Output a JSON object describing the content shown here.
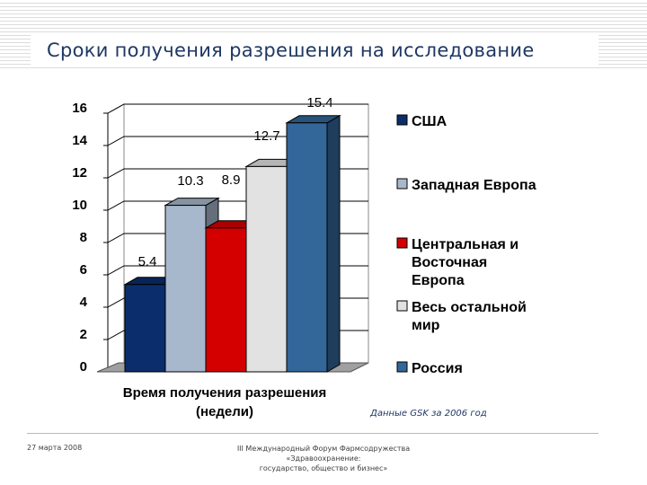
{
  "slide": {
    "title": "Сроки получения разрешения на исследование",
    "footer_date": "27 марта 2008",
    "footer_center": [
      "III Международный Форум Фармсодружества",
      "«Здравоохранение:",
      "государство, общество и бизнес»"
    ],
    "source_note": "Данные GSK за 2006 год"
  },
  "chart_data": {
    "type": "bar",
    "categories": [
      "Время получения разрешения (недели)"
    ],
    "xlabel_lines": [
      "Время получения разрешения",
      "(недели)"
    ],
    "series": [
      {
        "name": "США",
        "values": [
          5.4
        ],
        "color": "#0b2d6b"
      },
      {
        "name": "Западная Европа",
        "values": [
          10.3
        ],
        "color": "#a8b8cc"
      },
      {
        "name": "Центральная и Восточная Европа",
        "name_lines": [
          "Центральная и",
          "Восточная",
          "Европа"
        ],
        "values": [
          8.9
        ],
        "color": "#d40000"
      },
      {
        "name": "Весь остальной мир",
        "name_lines": [
          "Весь остальной",
          "мир"
        ],
        "values": [
          12.7
        ],
        "color": "#e2e2e2"
      },
      {
        "name": "Россия",
        "values": [
          15.4
        ],
        "color": "#336699"
      }
    ],
    "value_labels": [
      "5.4",
      "10.3",
      "8.9",
      "12.7",
      "15.4"
    ],
    "yticks": [
      "0",
      "2",
      "4",
      "6",
      "8",
      "10",
      "12",
      "14",
      "16"
    ],
    "ylim": [
      0,
      16
    ],
    "grid": true,
    "legend_position": "right"
  }
}
